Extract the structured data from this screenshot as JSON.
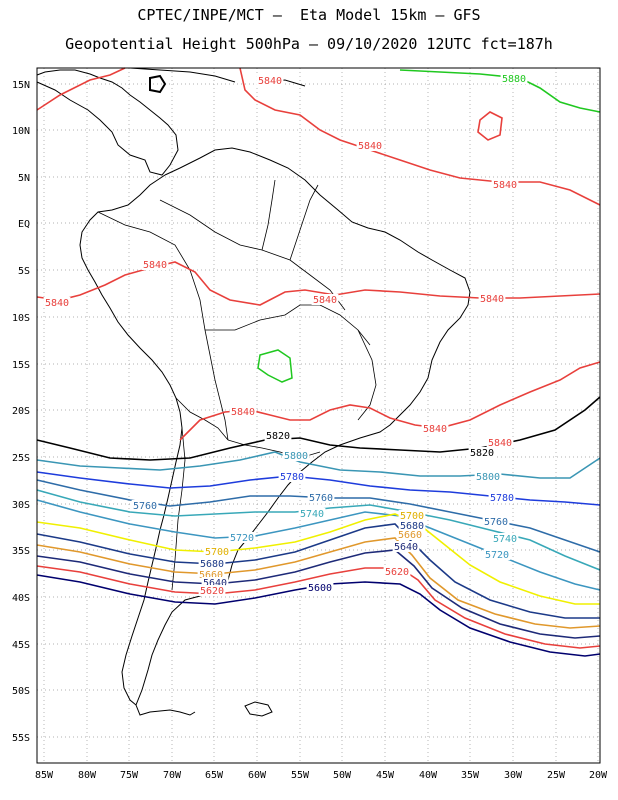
{
  "title_line1": "CPTEC/INPE/MCT –  Eta Model 15km – GFS",
  "title_line2": "Geopotential Height 500hPa – 09/10/2020 12UTC fct=187h",
  "lat_ticks": [
    "15N",
    "10N",
    "5N",
    "EQ",
    "5S",
    "10S",
    "15S",
    "20S",
    "25S",
    "30S",
    "35S",
    "40S",
    "45S",
    "50S",
    "55S"
  ],
  "lon_ticks": [
    "85W",
    "80W",
    "75W",
    "70W",
    "65W",
    "60W",
    "55W",
    "50W",
    "45W",
    "40W",
    "35W",
    "30W",
    "25W",
    "20W"
  ],
  "contour_colors": {
    "5600": "#00006e",
    "5620": "#e8403c",
    "5640": "#1e2a78",
    "5660": "#e0982c",
    "5680": "#1c3a88",
    "5700": "#f0f000",
    "5720": "#3c96c0",
    "5740": "#38a8b8",
    "5760": "#2e6ca8",
    "5780": "#1e3cdc",
    "5800": "#3a96b4",
    "5820": "#000000",
    "5840": "#e8403c",
    "5880": "#20c820"
  },
  "contour_labels": [
    {
      "text": "5840",
      "color": "#e8403c"
    },
    {
      "text": "5840",
      "color": "#e8403c"
    },
    {
      "text": "5840",
      "color": "#e8403c"
    },
    {
      "text": "5840",
      "color": "#e8403c"
    },
    {
      "text": "5840",
      "color": "#e8403c"
    },
    {
      "text": "5840",
      "color": "#e8403c"
    },
    {
      "text": "5840",
      "color": "#e8403c"
    },
    {
      "text": "5840",
      "color": "#e8403c"
    },
    {
      "text": "5840",
      "color": "#e8403c"
    },
    {
      "text": "5840",
      "color": "#e8403c"
    },
    {
      "text": "5880",
      "color": "#20c820"
    },
    {
      "text": "5820",
      "color": "#000000"
    },
    {
      "text": "5820",
      "color": "#000000"
    },
    {
      "text": "5800",
      "color": "#3a96b4"
    },
    {
      "text": "5800",
      "color": "#3a96b4"
    },
    {
      "text": "5780",
      "color": "#1e3cdc"
    },
    {
      "text": "5780",
      "color": "#1e3cdc"
    },
    {
      "text": "5760",
      "color": "#2e6ca8"
    },
    {
      "text": "5760",
      "color": "#2e6ca8"
    },
    {
      "text": "5760",
      "color": "#2e6ca8"
    },
    {
      "text": "5740",
      "color": "#38a8b8"
    },
    {
      "text": "5740",
      "color": "#38a8b8"
    },
    {
      "text": "5720",
      "color": "#3c96c0"
    },
    {
      "text": "5720",
      "color": "#3c96c0"
    },
    {
      "text": "5700",
      "color": "#e0b000"
    },
    {
      "text": "5700",
      "color": "#e0b000"
    },
    {
      "text": "5680",
      "color": "#1c3a88"
    },
    {
      "text": "5680",
      "color": "#1c3a88"
    },
    {
      "text": "5660",
      "color": "#e0982c"
    },
    {
      "text": "5660",
      "color": "#e0982c"
    },
    {
      "text": "5640",
      "color": "#1e2a78"
    },
    {
      "text": "5640",
      "color": "#1e2a78"
    },
    {
      "text": "5620",
      "color": "#e8403c"
    },
    {
      "text": "5620",
      "color": "#e8403c"
    },
    {
      "text": "5600",
      "color": "#00006e"
    }
  ]
}
